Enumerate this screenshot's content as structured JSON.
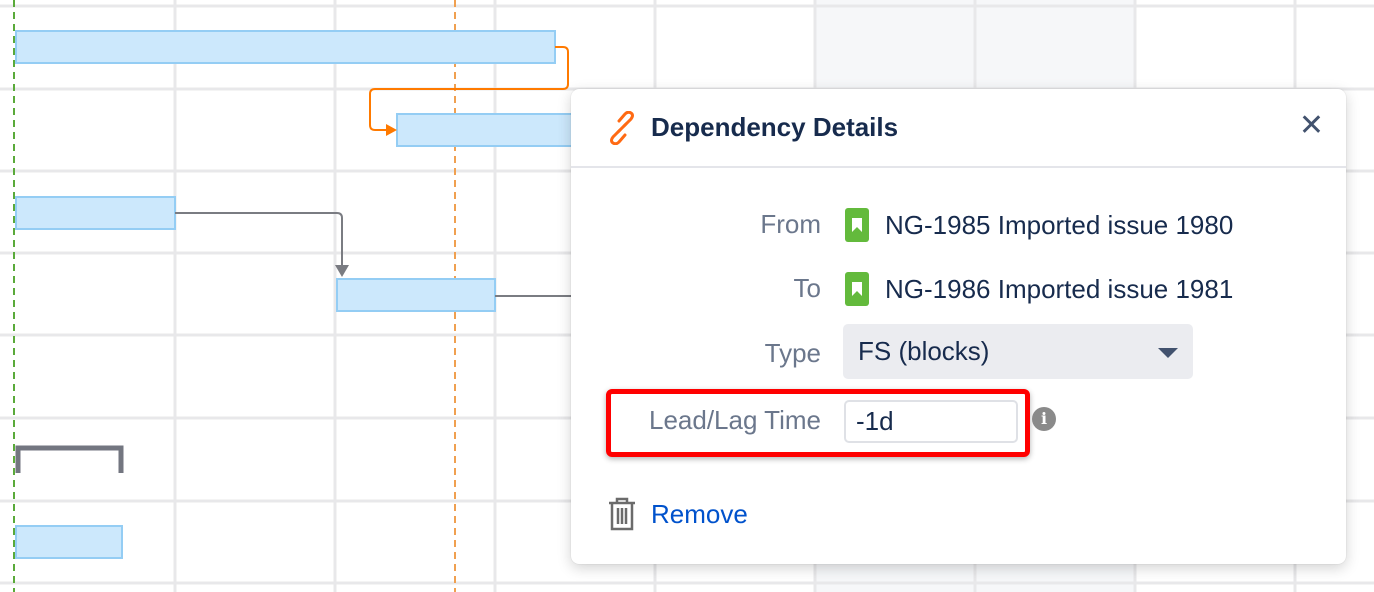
{
  "popup": {
    "title": "Dependency Details",
    "close_icon": "close-icon",
    "title_icon": "link-icon",
    "from_label": "From",
    "from_value": "NG-1985 Imported issue 1980",
    "to_label": "To",
    "to_value": "NG-1986 Imported issue 1981",
    "type_label": "Type",
    "type_value": "FS (blocks)",
    "lead_lag_label": "Lead/Lag Time",
    "lead_lag_value": "-1d",
    "remove_label": "Remove"
  },
  "colors": {
    "bar": "#cce8fc",
    "bar_border": "#94cdf4",
    "today": "#f0a050",
    "highlight": "#ff0000",
    "issue_badge": "#63ba3c",
    "link": "#0052cc",
    "dependency_selected": "#ff7a00"
  }
}
